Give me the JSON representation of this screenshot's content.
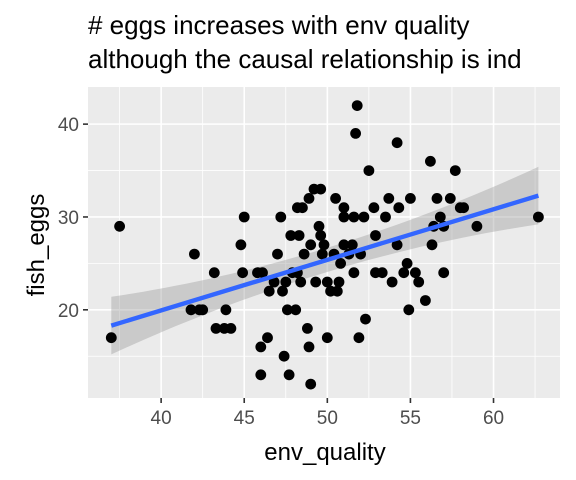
{
  "chart_data": {
    "type": "scatter",
    "title_lines": [
      "# eggs increases with env quality",
      "although the causal relationship is ind"
    ],
    "xlabel": "env_quality",
    "ylabel": "fish_eggs",
    "xlim": [
      35.6,
      64.0
    ],
    "ylim": [
      10.5,
      44.0
    ],
    "x_ticks": [
      40,
      45,
      50,
      55,
      60
    ],
    "y_ticks": [
      20,
      30,
      40
    ],
    "grid": true,
    "panel_background": "#ebebeb",
    "grid_color": "#ffffff",
    "point_color": "#000000",
    "line_color": "#3366ff",
    "ribbon_color": "#999999",
    "smooth": {
      "method": "linear",
      "x": [
        37.0,
        62.7
      ],
      "y": [
        18.3,
        32.3
      ],
      "ci_low": [
        15.4,
        29.2
      ],
      "ci_high": [
        21.6,
        35.4
      ]
    },
    "points": [
      [
        37.0,
        17.0
      ],
      [
        37.5,
        29.0
      ],
      [
        41.8,
        20.0
      ],
      [
        42.0,
        26.0
      ],
      [
        42.3,
        20.0
      ],
      [
        42.5,
        20.0
      ],
      [
        43.2,
        24.0
      ],
      [
        43.3,
        18.0
      ],
      [
        43.8,
        18.0
      ],
      [
        43.9,
        20.0
      ],
      [
        44.2,
        18.0
      ],
      [
        44.8,
        27.0
      ],
      [
        44.9,
        24.0
      ],
      [
        45.0,
        30.0
      ],
      [
        45.8,
        24.0
      ],
      [
        46.0,
        16.0
      ],
      [
        46.0,
        13.0
      ],
      [
        46.1,
        24.0
      ],
      [
        46.4,
        17.0
      ],
      [
        46.5,
        22.0
      ],
      [
        46.8,
        23.0
      ],
      [
        47.0,
        26.0
      ],
      [
        47.2,
        30.0
      ],
      [
        47.3,
        22.0
      ],
      [
        47.4,
        15.0
      ],
      [
        47.5,
        23.0
      ],
      [
        47.6,
        20.0
      ],
      [
        47.7,
        13.0
      ],
      [
        47.8,
        28.0
      ],
      [
        47.9,
        24.0
      ],
      [
        48.1,
        20.0
      ],
      [
        48.2,
        24.0
      ],
      [
        48.2,
        31.0
      ],
      [
        48.3,
        28.0
      ],
      [
        48.4,
        23.0
      ],
      [
        48.5,
        31.0
      ],
      [
        48.6,
        26.0
      ],
      [
        48.8,
        18.0
      ],
      [
        48.9,
        16.0
      ],
      [
        49.0,
        12.0
      ],
      [
        48.9,
        32.0
      ],
      [
        49.0,
        27.0
      ],
      [
        49.2,
        33.0
      ],
      [
        49.3,
        23.0
      ],
      [
        49.5,
        29.0
      ],
      [
        49.6,
        28.0
      ],
      [
        49.6,
        33.0
      ],
      [
        49.7,
        26.0
      ],
      [
        49.8,
        27.0
      ],
      [
        50.0,
        17.0
      ],
      [
        50.0,
        23.0
      ],
      [
        50.2,
        22.0
      ],
      [
        50.4,
        26.0
      ],
      [
        50.5,
        32.0
      ],
      [
        50.6,
        22.0
      ],
      [
        50.7,
        23.0
      ],
      [
        50.8,
        25.0
      ],
      [
        51.0,
        27.0
      ],
      [
        51.0,
        31.0
      ],
      [
        51.0,
        30.0
      ],
      [
        51.3,
        26.0
      ],
      [
        51.5,
        27.0
      ],
      [
        51.6,
        24.0
      ],
      [
        51.6,
        30.0
      ],
      [
        51.7,
        39.0
      ],
      [
        51.8,
        42.0
      ],
      [
        51.9,
        17.0
      ],
      [
        52.0,
        26.0
      ],
      [
        52.2,
        30.0
      ],
      [
        52.3,
        19.0
      ],
      [
        52.5,
        35.0
      ],
      [
        52.8,
        31.0
      ],
      [
        52.9,
        24.0
      ],
      [
        52.9,
        28.0
      ],
      [
        53.3,
        24.0
      ],
      [
        53.5,
        30.0
      ],
      [
        53.7,
        32.0
      ],
      [
        53.9,
        23.0
      ],
      [
        54.2,
        38.0
      ],
      [
        54.2,
        27.0
      ],
      [
        54.3,
        31.0
      ],
      [
        54.6,
        24.0
      ],
      [
        54.8,
        25.0
      ],
      [
        54.9,
        20.0
      ],
      [
        55.0,
        32.0
      ],
      [
        55.3,
        24.0
      ],
      [
        55.5,
        23.0
      ],
      [
        55.9,
        21.0
      ],
      [
        56.2,
        36.0
      ],
      [
        56.3,
        27.0
      ],
      [
        56.4,
        29.0
      ],
      [
        56.6,
        32.0
      ],
      [
        56.8,
        30.0
      ],
      [
        57.0,
        24.0
      ],
      [
        57.0,
        29.0
      ],
      [
        57.4,
        32.0
      ],
      [
        57.7,
        35.0
      ],
      [
        58.0,
        31.0
      ],
      [
        58.2,
        31.0
      ],
      [
        59.0,
        29.0
      ],
      [
        62.7,
        30.0
      ]
    ]
  }
}
